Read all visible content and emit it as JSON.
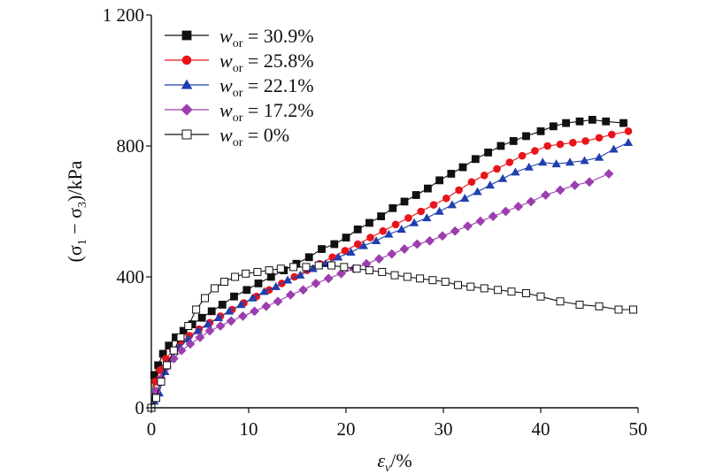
{
  "chart_data": {
    "type": "line",
    "xlabel_main": "ε",
    "xlabel_sub": "v",
    "xlabel_rest": "/%",
    "ylabel": "(σ",
    "ylabel_sub1": "1",
    "ylabel_mid": " − σ",
    "ylabel_sub2": "3",
    "ylabel_rest": ")/kPa",
    "xlim": [
      0,
      50
    ],
    "ylim": [
      0,
      1200
    ],
    "x_ticks": [
      0,
      10,
      20,
      30,
      40,
      50
    ],
    "y_ticks": [
      0,
      400,
      800,
      1200
    ],
    "x_tick_labels": [
      "0",
      "10",
      "20",
      "30",
      "40",
      "50"
    ],
    "y_tick_labels": [
      "0",
      "400",
      "800",
      "1 200"
    ],
    "legend_position": "top-left",
    "grid": false,
    "series": [
      {
        "name": "30.9%",
        "legend_var": "w",
        "legend_sub": "or",
        "legend_eq": " = ",
        "color": "#111111",
        "marker": "square",
        "x": [
          0,
          0.3,
          0.7,
          1.2,
          1.8,
          2.5,
          3.3,
          4.2,
          5.2,
          6.2,
          7.3,
          8.5,
          9.8,
          11,
          12.3,
          13.6,
          14.9,
          16.2,
          17.5,
          18.8,
          20,
          21.2,
          22.4,
          23.6,
          24.8,
          26,
          27.2,
          28.4,
          29.6,
          30.8,
          32,
          33.3,
          34.6,
          35.9,
          37.2,
          38.5,
          40,
          41.3,
          42.6,
          44,
          45.3,
          46.7,
          48.5
        ],
        "y": [
          0,
          100,
          130,
          165,
          190,
          215,
          235,
          255,
          275,
          295,
          315,
          340,
          360,
          380,
          400,
          420,
          440,
          460,
          485,
          500,
          520,
          545,
          565,
          585,
          610,
          630,
          650,
          670,
          695,
          715,
          735,
          760,
          780,
          800,
          815,
          830,
          845,
          860,
          870,
          875,
          880,
          875,
          870
        ]
      },
      {
        "name": "25.8%",
        "legend_var": "w",
        "legend_sub": "or",
        "legend_eq": " = ",
        "color": "#e8141b",
        "marker": "circle",
        "x": [
          0,
          0.4,
          0.9,
          1.5,
          2.2,
          3,
          3.9,
          4.9,
          6,
          7.1,
          8.3,
          9.5,
          10.8,
          12.1,
          13.4,
          14.7,
          16,
          17.3,
          18.6,
          19.9,
          21.2,
          22.5,
          23.8,
          25.1,
          26.4,
          27.7,
          29,
          30.3,
          31.6,
          32.9,
          34.2,
          35.5,
          36.8,
          38.1,
          39.4,
          40.7,
          42,
          43.3,
          44.6,
          46,
          47.3,
          49
        ],
        "y": [
          0,
          80,
          115,
          150,
          175,
          200,
          220,
          240,
          260,
          280,
          300,
          320,
          340,
          360,
          380,
          400,
          420,
          440,
          460,
          480,
          500,
          520,
          540,
          560,
          580,
          600,
          620,
          640,
          665,
          690,
          710,
          730,
          750,
          770,
          785,
          800,
          805,
          810,
          815,
          825,
          835,
          845
        ]
      },
      {
        "name": "22.1%",
        "legend_var": "w",
        "legend_sub": "or",
        "legend_eq": " = ",
        "color": "#1f3fae",
        "marker": "triangle",
        "x": [
          0,
          0.3,
          0.8,
          1.4,
          2.1,
          2.9,
          3.8,
          4.8,
          5.8,
          6.9,
          8,
          9.2,
          10.4,
          11.6,
          12.8,
          14,
          15.3,
          16.6,
          17.9,
          19.2,
          20.5,
          21.8,
          23.1,
          24.4,
          25.7,
          27,
          28.3,
          29.6,
          30.9,
          32.2,
          33.5,
          34.8,
          36.1,
          37.4,
          38.8,
          40.2,
          41.6,
          43,
          44.5,
          46,
          47.5,
          49
        ],
        "y": [
          0,
          20,
          45,
          110,
          150,
          185,
          210,
          235,
          255,
          275,
          295,
          315,
          335,
          355,
          370,
          390,
          405,
          425,
          440,
          460,
          475,
          495,
          510,
          530,
          545,
          565,
          580,
          600,
          620,
          640,
          660,
          680,
          700,
          720,
          735,
          750,
          745,
          750,
          755,
          765,
          790,
          810
        ]
      },
      {
        "name": "17.2%",
        "legend_var": "w",
        "legend_sub": "or",
        "legend_eq": " = ",
        "color": "#9b3fae",
        "marker": "diamond",
        "x": [
          0,
          0.5,
          1,
          1.6,
          2.3,
          3.1,
          4,
          5,
          6,
          7.1,
          8.2,
          9.4,
          10.6,
          11.8,
          13,
          14.3,
          15.6,
          16.9,
          18.2,
          19.5,
          20.8,
          22.1,
          23.4,
          24.7,
          26,
          27.3,
          28.6,
          29.9,
          31.2,
          32.5,
          33.8,
          35.1,
          36.4,
          37.7,
          39,
          40.5,
          42,
          43.5,
          45,
          47
        ],
        "y": [
          0,
          50,
          90,
          125,
          150,
          175,
          195,
          215,
          235,
          250,
          265,
          280,
          295,
          310,
          325,
          345,
          360,
          380,
          395,
          410,
          425,
          440,
          455,
          470,
          485,
          500,
          510,
          525,
          540,
          555,
          570,
          585,
          600,
          615,
          630,
          650,
          665,
          680,
          690,
          715
        ]
      },
      {
        "name": "0%",
        "legend_var": "w",
        "legend_sub": "or",
        "legend_eq": " = ",
        "color": "#111111",
        "marker": "square-open",
        "x": [
          0,
          0.5,
          1,
          1.6,
          2.3,
          3,
          3.8,
          4.6,
          5.5,
          6.5,
          7.5,
          8.6,
          9.7,
          10.9,
          12.1,
          13.3,
          14.6,
          15.9,
          17.2,
          18.5,
          19.8,
          21.1,
          22.4,
          23.7,
          25,
          26.3,
          27.6,
          28.9,
          30.2,
          31.5,
          32.8,
          34.2,
          35.6,
          37,
          38.5,
          40,
          42,
          44,
          46,
          48,
          49.5
        ],
        "y": [
          0,
          30,
          80,
          130,
          175,
          215,
          250,
          300,
          335,
          365,
          385,
          400,
          410,
          415,
          420,
          425,
          430,
          430,
          435,
          435,
          430,
          425,
          420,
          415,
          405,
          400,
          395,
          390,
          385,
          375,
          370,
          365,
          360,
          355,
          350,
          340,
          325,
          315,
          310,
          300,
          300
        ]
      }
    ]
  }
}
